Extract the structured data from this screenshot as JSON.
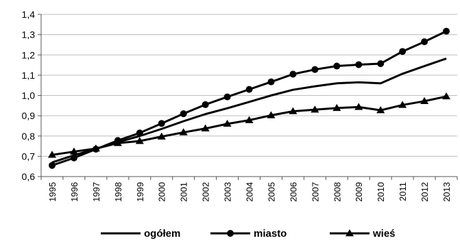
{
  "chart_data": {
    "type": "line",
    "title": "",
    "xlabel": "",
    "ylabel": "",
    "ylim": [
      0.6,
      1.4
    ],
    "yticks": [
      "0,6",
      "0,7",
      "0,8",
      "0,9",
      "1,0",
      "1,1",
      "1,2",
      "1,3",
      "1,4"
    ],
    "grid": true,
    "legend_position": "bottom",
    "categories": [
      "1995",
      "1996",
      "1997",
      "1998",
      "1999",
      "2000",
      "2001",
      "2002",
      "2003",
      "2004",
      "2005",
      "2006",
      "2007",
      "2008",
      "2009",
      "2010",
      "2011",
      "2012",
      "2013"
    ],
    "series": [
      {
        "name": "ogółem",
        "marker": "none",
        "color": "#000000",
        "values": [
          0.67,
          0.705,
          0.737,
          0.77,
          0.8,
          0.835,
          0.873,
          0.908,
          0.937,
          0.968,
          1.0,
          1.028,
          1.045,
          1.06,
          1.065,
          1.06,
          1.107,
          1.145,
          1.182
        ]
      },
      {
        "name": "miasto",
        "marker": "circle",
        "color": "#000000",
        "values": [
          0.655,
          0.692,
          0.735,
          0.778,
          0.815,
          0.862,
          0.91,
          0.955,
          0.993,
          1.03,
          1.067,
          1.105,
          1.128,
          1.145,
          1.152,
          1.157,
          1.217,
          1.265,
          1.317
        ]
      },
      {
        "name": "wieś",
        "marker": "triangle",
        "color": "#000000",
        "values": [
          0.707,
          0.723,
          0.738,
          0.765,
          0.775,
          0.797,
          0.818,
          0.837,
          0.86,
          0.878,
          0.902,
          0.922,
          0.93,
          0.938,
          0.943,
          0.927,
          0.953,
          0.972,
          0.995
        ]
      }
    ]
  }
}
